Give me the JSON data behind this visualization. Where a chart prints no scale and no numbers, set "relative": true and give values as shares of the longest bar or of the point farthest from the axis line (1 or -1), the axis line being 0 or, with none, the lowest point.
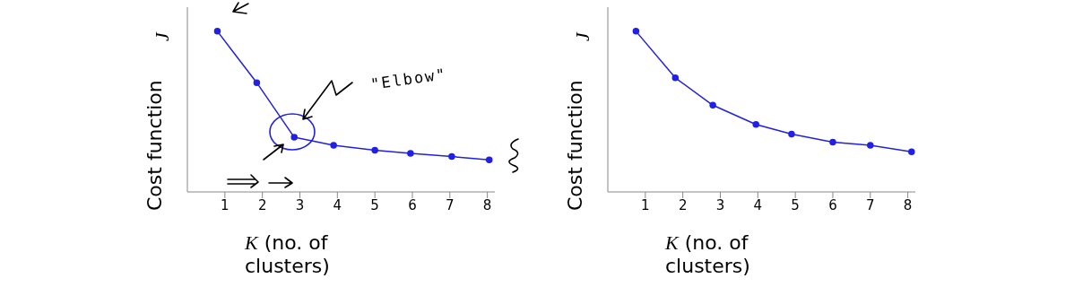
{
  "chart_data": [
    {
      "type": "line",
      "xlabel": "K (no. of clusters)",
      "ylabel": "Cost function",
      "annotations": [
        "J",
        "\"Elbow\""
      ],
      "relative": true,
      "marker": "circle",
      "x": [
        0.8,
        1.85,
        2.85,
        3.9,
        5,
        5.95,
        7.05,
        8.05
      ],
      "xlim": [
        0,
        8.2
      ],
      "xticks": [
        1,
        2,
        3,
        4,
        5,
        6,
        7,
        8
      ],
      "series": [
        {
          "color": "#2020e6",
          "values": [
            1,
            0.68,
            0.34,
            0.29,
            0.26,
            0.24,
            0.22,
            0.2
          ]
        }
      ]
    },
    {
      "type": "line",
      "xlabel": "K (no. of clusters)",
      "ylabel": "Cost function",
      "annotations": [
        "J"
      ],
      "relative": true,
      "marker": "circle",
      "x": [
        0.75,
        1.8,
        2.8,
        3.95,
        4.9,
        6,
        7,
        8.1
      ],
      "xlim": [
        0,
        8.2
      ],
      "xticks": [
        1,
        2,
        3,
        4,
        5,
        6,
        7,
        8
      ],
      "series": [
        {
          "color": "#2020e6",
          "values": [
            1,
            0.71,
            0.54,
            0.42,
            0.36,
            0.31,
            0.29,
            0.25
          ]
        }
      ]
    }
  ]
}
